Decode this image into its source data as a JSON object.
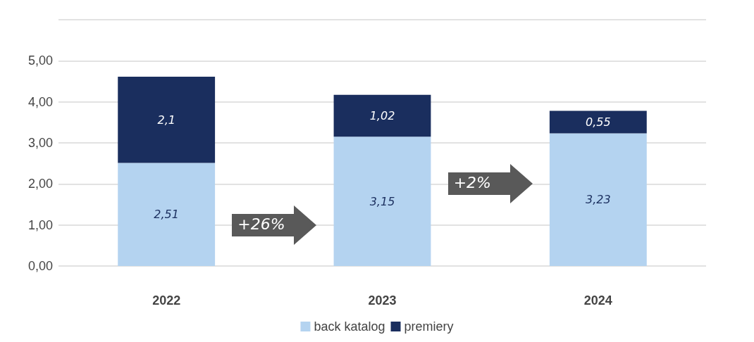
{
  "chart_data": {
    "type": "bar",
    "stacked": true,
    "categories": [
      "2022",
      "2023",
      "2024"
    ],
    "series": [
      {
        "name": "back katalog",
        "color": "#b4d3f0",
        "values": [
          2.51,
          3.15,
          3.23
        ],
        "value_labels": [
          "2,51",
          "3,15",
          "3,23"
        ]
      },
      {
        "name": "premiery",
        "color": "#1a2e5e",
        "values": [
          2.1,
          1.02,
          0.55
        ],
        "value_labels": [
          "2,1",
          "1,02",
          "0,55"
        ]
      }
    ],
    "ylim": [
      0,
      6
    ],
    "yticks": [
      {
        "value": 0,
        "label": "0,00"
      },
      {
        "value": 1,
        "label": "1,00"
      },
      {
        "value": 2,
        "label": "2,00"
      },
      {
        "value": 3,
        "label": "3,00"
      },
      {
        "value": 4,
        "label": "4,00"
      },
      {
        "value": 5,
        "label": "5,00"
      },
      {
        "value": 6,
        "label": null
      }
    ],
    "grid": "y",
    "legend": "bottom",
    "annotations": [
      "+26%",
      "+2%"
    ]
  }
}
